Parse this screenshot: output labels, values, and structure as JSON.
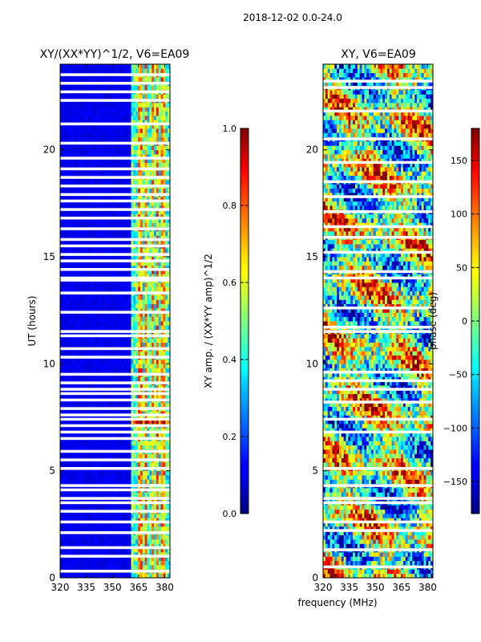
{
  "suptitle": "2018-12-02 0.0-24.0",
  "chart_data": [
    {
      "type": "heatmap",
      "title": "XY/(XX*YY)^1/2, V6=EA09",
      "xlabel": "",
      "ylabel": "UT (hours)",
      "xlim": [
        320,
        383
      ],
      "ylim": [
        0,
        24
      ],
      "xticks": [
        320,
        335,
        350,
        365,
        380
      ],
      "yticks": [
        0,
        5,
        10,
        15,
        20
      ],
      "colorbar": {
        "label": "XY amp. / (XX*YY amp)^1/2",
        "range": [
          0.0,
          1.0
        ],
        "ticks": [
          "0.0",
          "0.2",
          "0.4",
          "0.6",
          "0.8",
          "1.0"
        ],
        "colormap": "jet"
      },
      "bright_columns_mhz": [
        366,
        369,
        373,
        376,
        379
      ],
      "low_band_mhz": [
        320,
        361
      ],
      "low_band_level": 0.08,
      "high_band_level": 0.45,
      "flagged_ut_hours": [
        0.3,
        1.0,
        1.4,
        2.1,
        2.6,
        3.1,
        3.5,
        3.7,
        4.1,
        4.3,
        5.1,
        5.5,
        5.9,
        6.5,
        6.8,
        7.1,
        7.4,
        7.6,
        7.9,
        8.3,
        8.6,
        8.8,
        9.1,
        9.5,
        10.3,
        10.7,
        11.3,
        11.5,
        12.4,
        13.3,
        13.9,
        14.0,
        14.4,
        14.8,
        15.1,
        15.5,
        15.8,
        16.3,
        16.8,
        17.2,
        17.6,
        17.9,
        18.3,
        18.7,
        19.1,
        19.6,
        20.3,
        21.2,
        22.3,
        22.7,
        23.1,
        23.5
      ]
    },
    {
      "type": "heatmap",
      "title": "XY, V6=EA09",
      "xlabel": "frequency (MHz)",
      "ylabel": "",
      "xlim": [
        320,
        383
      ],
      "ylim": [
        0,
        24
      ],
      "xticks": [
        320,
        335,
        350,
        365,
        380
      ],
      "yticks": [
        0,
        5,
        10,
        15,
        20
      ],
      "colorbar": {
        "label": "phase (deg)",
        "range": [
          -180,
          180
        ],
        "ticks": [
          "−150",
          "−100",
          "−50",
          "0",
          "50",
          "100",
          "150"
        ],
        "colormap": "jet"
      },
      "flagged_ut_hours": [
        0.5,
        1.3,
        2.2,
        2.6,
        3.5,
        3.7,
        4.3,
        5.1,
        6.8,
        7.4,
        8.2,
        8.8,
        9.2,
        9.6,
        11.5,
        11.7,
        12.6,
        14.0,
        14.3,
        15.2,
        15.9,
        16.4,
        17.1,
        17.8,
        18.5,
        19.4,
        20.5,
        21.8,
        22.9,
        23.2
      ]
    }
  ]
}
